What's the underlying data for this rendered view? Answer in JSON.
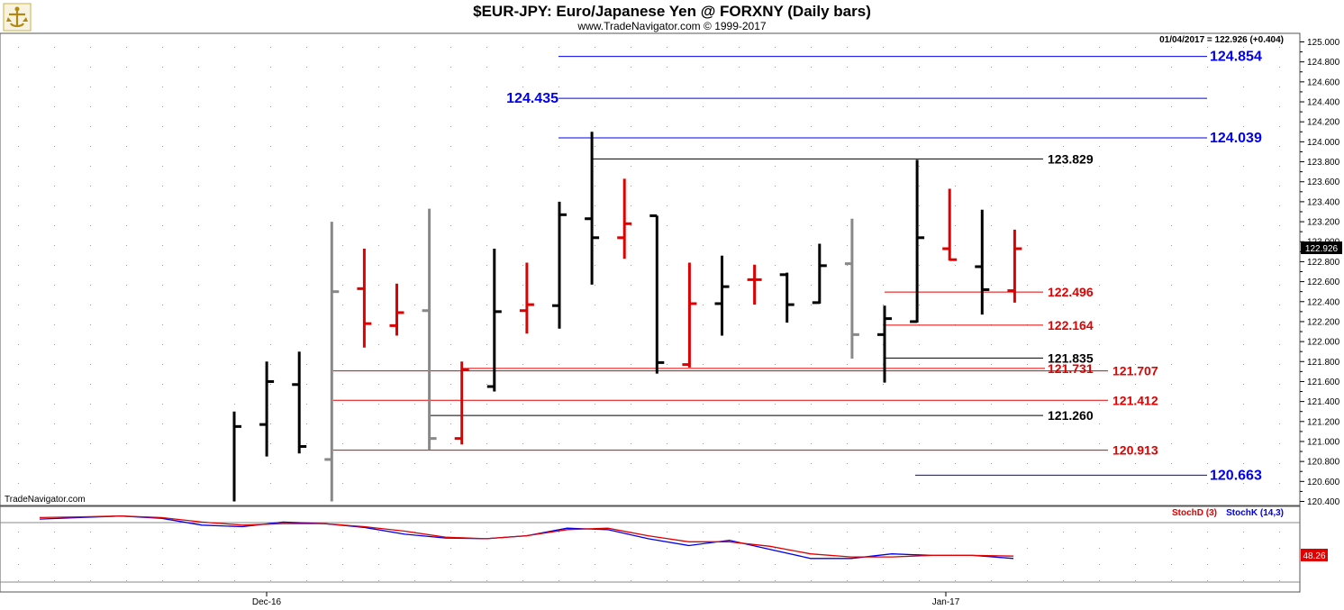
{
  "header": {
    "title": "$EUR-JPY:  Euro/Japanese Yen @ FORXNY  (Daily bars)",
    "subtitle": "www.TradeNavigator.com © 1999-2017",
    "last_readout": "01/04/2017 = 122.926 (+0.404)",
    "watermark": "TradeNavigator.com"
  },
  "colors": {
    "up": "#000000",
    "down": "#e00000",
    "neutral": "#888888",
    "blue_level": "#0000ee",
    "red_level": "#e00000",
    "black_level": "#000000",
    "stochK": "#0000ee",
    "stochD": "#e00000"
  },
  "chart_data": [
    {
      "type": "ohlc",
      "title": "$EUR-JPY:  Euro/Japanese Yen @ FORXNY  (Daily bars)",
      "ylim": [
        120.4,
        125.0
      ],
      "yticks": [
        "125.000",
        "124.800",
        "124.600",
        "124.400",
        "124.200",
        "124.000",
        "123.800",
        "123.600",
        "123.400",
        "123.200",
        "123.000",
        "122.800",
        "122.600",
        "122.400",
        "122.200",
        "122.000",
        "121.800",
        "121.600",
        "121.400",
        "121.200",
        "121.000",
        "120.800",
        "120.600",
        "120.400"
      ],
      "xlabels": [
        {
          "label": "Dec-16",
          "bar": 3.5
        },
        {
          "label": "Jan-17",
          "bar": 22.5
        }
      ],
      "last_value": "122.926",
      "bars": [
        {
          "o": null,
          "h": 121.3,
          "l": 120.4,
          "c": 121.15,
          "color": "up"
        },
        {
          "o": 121.17,
          "h": 121.8,
          "l": 120.85,
          "c": 121.6,
          "color": "up"
        },
        {
          "o": 121.57,
          "h": 121.9,
          "l": 120.88,
          "c": 120.95,
          "color": "up"
        },
        {
          "o": 120.82,
          "h": 123.2,
          "l": 120.4,
          "c": 122.5,
          "color": "neutral"
        },
        {
          "o": 122.53,
          "h": 122.93,
          "l": 121.94,
          "c": 122.18,
          "color": "down"
        },
        {
          "o": 122.16,
          "h": 122.58,
          "l": 122.06,
          "c": 122.29,
          "color": "down"
        },
        {
          "o": 122.31,
          "h": 123.33,
          "l": 120.92,
          "c": 121.03,
          "color": "neutral"
        },
        {
          "o": 121.03,
          "h": 121.8,
          "l": 120.97,
          "c": 121.72,
          "color": "down"
        },
        {
          "o": 121.55,
          "h": 122.93,
          "l": 121.5,
          "c": 122.3,
          "color": "up"
        },
        {
          "o": 122.31,
          "h": 122.79,
          "l": 122.08,
          "c": 122.37,
          "color": "down"
        },
        {
          "o": 122.36,
          "h": 123.4,
          "l": 122.13,
          "c": 123.27,
          "color": "up"
        },
        {
          "o": 123.23,
          "h": 124.1,
          "l": 122.57,
          "c": 123.04,
          "color": "up"
        },
        {
          "o": 123.04,
          "h": 123.63,
          "l": 122.83,
          "c": 123.18,
          "color": "down"
        },
        {
          "o": 123.26,
          "h": 123.26,
          "l": 121.68,
          "c": 121.79,
          "color": "up"
        },
        {
          "o": 121.77,
          "h": 122.79,
          "l": 121.74,
          "c": 122.38,
          "color": "down"
        },
        {
          "o": 122.38,
          "h": 122.86,
          "l": 122.06,
          "c": 122.55,
          "color": "up"
        },
        {
          "o": 122.62,
          "h": 122.77,
          "l": 122.37,
          "c": 122.62,
          "color": "down"
        },
        {
          "o": 122.67,
          "h": 122.69,
          "l": 122.19,
          "c": 122.37,
          "color": "up"
        },
        {
          "o": 122.39,
          "h": 122.98,
          "l": 122.38,
          "c": 122.76,
          "color": "up"
        },
        {
          "o": 122.78,
          "h": 123.23,
          "l": 121.83,
          "c": 122.07,
          "color": "neutral"
        },
        {
          "o": 122.07,
          "h": 122.36,
          "l": 121.59,
          "c": 122.23,
          "color": "up"
        },
        {
          "o": 122.2,
          "h": 123.82,
          "l": 122.19,
          "c": 123.04,
          "color": "up"
        },
        {
          "o": 122.93,
          "h": 123.53,
          "l": 122.81,
          "c": 122.82,
          "color": "down"
        },
        {
          "o": 122.75,
          "h": 123.32,
          "l": 122.27,
          "c": 122.52,
          "color": "up"
        },
        {
          "o": 122.51,
          "h": 123.12,
          "l": 122.39,
          "c": 122.93,
          "color": "down"
        }
      ],
      "levels": [
        {
          "label": "124.854",
          "value": 124.854,
          "from": 11,
          "to": 30,
          "color": "blue",
          "side": "right"
        },
        {
          "label": "124.435",
          "value": 124.435,
          "from": 11,
          "to": 30,
          "color": "blue",
          "side": "left"
        },
        {
          "label": "124.039",
          "value": 124.039,
          "from": 11,
          "to": 30,
          "color": "blue",
          "side": "right"
        },
        {
          "label": "123.829",
          "value": 123.829,
          "from": 11,
          "to": 21,
          "color": "black",
          "side": "right"
        },
        {
          "label": "122.496",
          "value": 122.496,
          "from": 20,
          "to": 24,
          "color": "red",
          "side": "right"
        },
        {
          "label": "122.164",
          "value": 122.164,
          "from": 20,
          "to": 24,
          "color": "red",
          "side": "right"
        },
        {
          "label": "121.835",
          "value": 121.835,
          "from": 20,
          "to": 24,
          "color": "black",
          "side": "right"
        },
        {
          "label": "121.731",
          "value": 121.731,
          "from": 7,
          "to": 24,
          "color": "red",
          "side": "right"
        },
        {
          "label": "121.707",
          "value": 121.707,
          "from": 3,
          "to": 26,
          "color": "red",
          "side": "right"
        },
        {
          "label": "121.412",
          "value": 121.412,
          "from": 3,
          "to": 26,
          "color": "red",
          "side": "right"
        },
        {
          "label": "121.260",
          "value": 121.26,
          "from": 6,
          "to": 24,
          "color": "black",
          "side": "right"
        },
        {
          "label": "120.913",
          "value": 120.913,
          "from": 3,
          "to": 26,
          "color": "red",
          "side": "right"
        },
        {
          "label": "120.663",
          "value": 120.663,
          "from": 21,
          "to": 30,
          "color": "blue",
          "side": "right"
        }
      ]
    },
    {
      "type": "line",
      "title": "",
      "ylim": [
        0,
        100
      ],
      "legend": [
        "StochD (3)",
        "StochK (14,3)"
      ],
      "last_value": "48.26",
      "series": [
        {
          "name": "StochK (14,3)",
          "color": "blue",
          "values": [
            88,
            90,
            92,
            89,
            80,
            78,
            84,
            82,
            77,
            68,
            63,
            62,
            66,
            76,
            74,
            62,
            53,
            60,
            48,
            36,
            36,
            42,
            40,
            40,
            36
          ]
        },
        {
          "name": "StochD (3)",
          "color": "red",
          "values": [
            90,
            91,
            92,
            90,
            84,
            80,
            82,
            82,
            78,
            72,
            64,
            62,
            66,
            74,
            76,
            66,
            58,
            58,
            52,
            42,
            38,
            38,
            40,
            40,
            39
          ]
        }
      ]
    }
  ]
}
